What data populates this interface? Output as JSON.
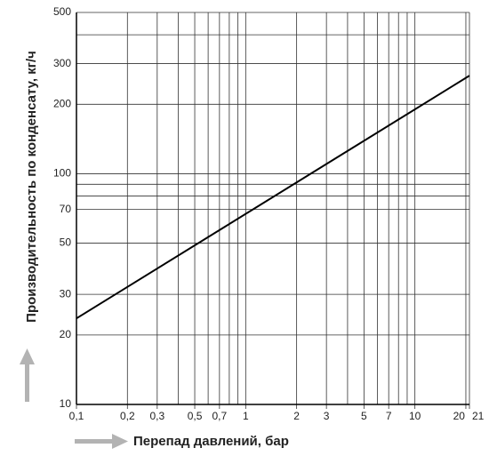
{
  "chart_data": {
    "type": "line",
    "log_x": true,
    "log_y": true,
    "grid": true,
    "xlabel": "Перепад давлений, бар",
    "ylabel": "Производительность по конденсату, кг/ч",
    "xlim": [
      0.1,
      21
    ],
    "xticks": [
      {
        "value": 0.1,
        "label": "0,1"
      },
      {
        "value": 0.2,
        "label": "0,2"
      },
      {
        "value": 0.3,
        "label": "0,3"
      },
      {
        "value": 0.5,
        "label": "0,5"
      },
      {
        "value": 0.7,
        "label": "0,7"
      },
      1,
      2,
      3,
      5,
      7,
      10,
      20,
      21
    ],
    "xgrid_minor": [
      0.4,
      0.6,
      0.8,
      0.9,
      4,
      6,
      8,
      9
    ],
    "ylim": [
      10,
      500
    ],
    "yticks": [
      10,
      20,
      30,
      50,
      70,
      100,
      200,
      300,
      500
    ],
    "ygrid_minor": [
      80,
      90,
      400
    ],
    "x": [
      0.1,
      21
    ],
    "series": [
      {
        "color": "#000000",
        "values": [
          23.6,
          266
        ]
      }
    ]
  }
}
